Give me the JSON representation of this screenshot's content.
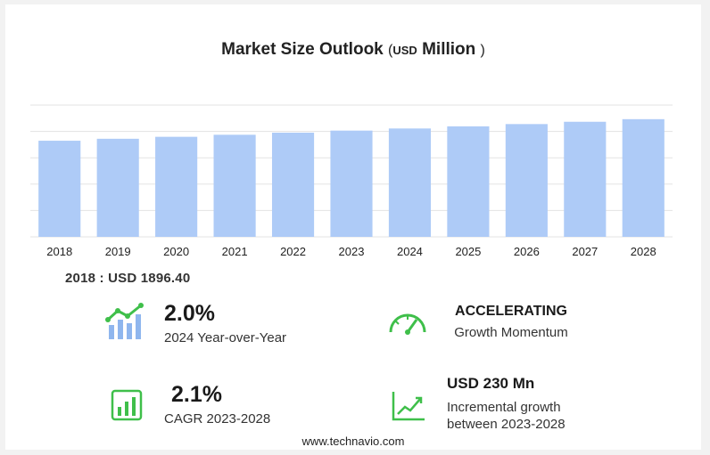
{
  "header": {
    "title_main": "Market Size Outlook",
    "title_open": "(",
    "title_unit": "USD",
    "title_million": "Million",
    "title_close": ")"
  },
  "chart_data": {
    "type": "bar",
    "categories": [
      "2018",
      "2019",
      "2020",
      "2021",
      "2022",
      "2023",
      "2024",
      "2025",
      "2026",
      "2027",
      "2028"
    ],
    "values": [
      1896.4,
      1935.2,
      1973.9,
      2014.1,
      2055.2,
      2096.1,
      2137.9,
      2180.5,
      2225.0,
      2270.5,
      2321.8
    ],
    "ylim": [
      0,
      2600
    ],
    "grid": true,
    "bar_color": "#aecbf7"
  },
  "first_value": "2018 : USD  1896.40",
  "stats": {
    "yoy_value": "2.0%",
    "yoy_label": "2024 Year-over-Year",
    "momentum_head": "ACCELERATING",
    "momentum_label": "Growth Momentum",
    "cagr_value": "2.1%",
    "cagr_label": "CAGR 2023-2028",
    "incr_value": "USD 230 Mn",
    "incr_label_1": "Incremental growth",
    "incr_label_2": "between 2023-2028"
  },
  "icons": {
    "accent": "#3fbf4a",
    "secondary": "#8fb6ee"
  },
  "footer": "www.technavio.com"
}
